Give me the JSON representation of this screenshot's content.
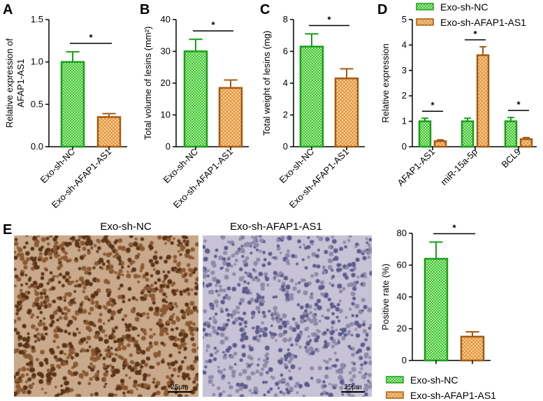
{
  "panel_labels": [
    "A",
    "B",
    "C",
    "D",
    "E"
  ],
  "legend": {
    "nc": "Exo-sh-NC",
    "afap": "Exo-sh-AFAP1-AS1"
  },
  "micrographs": {
    "left_title": "Exo-sh-NC",
    "right_title": "Exo-sh-AFAP1-AS1",
    "scalebar_left": "25μm",
    "scalebar_right": "25μm"
  },
  "colors": {
    "nc_fill": "#7ed86a",
    "nc_stroke": "#1a9e1a",
    "afap_fill": "#f2b56b",
    "afap_stroke": "#a35a12"
  },
  "chart_data": [
    {
      "id": "A",
      "type": "bar",
      "ylabel": "Relative expression of AFAP1-AS1",
      "categories": [
        "Exo-sh-NC",
        "Exo-sh-AFAP1-AS1"
      ],
      "values": [
        1.0,
        0.35
      ],
      "errors": [
        0.12,
        0.04
      ],
      "ylim": [
        0,
        1.5
      ],
      "yticks": [
        "0.0",
        "0.5",
        "1.0",
        "1.5"
      ],
      "significance": "*"
    },
    {
      "id": "B",
      "type": "bar",
      "ylabel": "Total volume of lesins (mm²)",
      "categories": [
        "Exo-sh-NC",
        "Exo-sh-AFAP1-AS1"
      ],
      "values": [
        30,
        18.5
      ],
      "errors": [
        3.8,
        2.5
      ],
      "ylim": [
        0,
        40
      ],
      "yticks": [
        "0",
        "10",
        "20",
        "30",
        "40"
      ],
      "significance": "*"
    },
    {
      "id": "C",
      "type": "bar",
      "ylabel": "Total weight of lesins (mg)",
      "categories": [
        "Exo-sh-NC",
        "Exo-sh-AFAP1-AS1"
      ],
      "values": [
        6.3,
        4.3
      ],
      "errors": [
        0.8,
        0.6
      ],
      "ylim": [
        0,
        8
      ],
      "yticks": [
        "0",
        "2",
        "4",
        "6",
        "8"
      ],
      "significance": "*"
    },
    {
      "id": "D",
      "type": "bar",
      "ylabel": "Relative expression",
      "categories": [
        "AFAP1-AS1",
        "miR-15a-5p",
        "BCL9"
      ],
      "series": [
        {
          "name": "Exo-sh-NC",
          "values": [
            1.0,
            1.0,
            1.0
          ],
          "errors": [
            0.12,
            0.12,
            0.15
          ]
        },
        {
          "name": "Exo-sh-AFAP1-AS1",
          "values": [
            0.22,
            3.6,
            0.3
          ],
          "errors": [
            0.05,
            0.33,
            0.06
          ]
        }
      ],
      "ylim": [
        0,
        5
      ],
      "yticks": [
        "0",
        "1",
        "2",
        "3",
        "4",
        "5"
      ],
      "significance": [
        "*",
        "*",
        "*"
      ]
    },
    {
      "id": "E",
      "type": "bar",
      "ylabel": "Positive rate (%)",
      "categories": [
        "Exo-sh-NC",
        "Exo-sh-AFAP1-AS1"
      ],
      "values": [
        64,
        15
      ],
      "errors": [
        10.5,
        3
      ],
      "ylim": [
        0,
        80
      ],
      "yticks": [
        "0",
        "20",
        "40",
        "60",
        "80"
      ],
      "significance": "*"
    }
  ]
}
